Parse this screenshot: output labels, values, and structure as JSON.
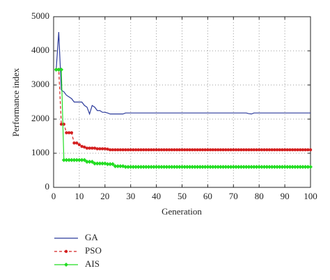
{
  "chart_data": {
    "type": "line",
    "x_label": "Generation",
    "y_label": "Performance index",
    "xlim": [
      0,
      100
    ],
    "ylim": [
      0,
      5000
    ],
    "xticks": [
      0,
      10,
      20,
      30,
      40,
      50,
      60,
      70,
      80,
      90,
      100
    ],
    "yticks": [
      0,
      1000,
      2000,
      3000,
      4000,
      5000
    ],
    "grid": true,
    "legend_position": "below",
    "x": [
      1,
      2,
      3,
      4,
      5,
      6,
      7,
      8,
      9,
      10,
      11,
      12,
      13,
      14,
      15,
      16,
      17,
      18,
      19,
      20,
      21,
      22,
      23,
      24,
      25,
      26,
      27,
      28,
      29,
      30,
      31,
      32,
      33,
      34,
      35,
      36,
      37,
      38,
      39,
      40,
      41,
      42,
      43,
      44,
      45,
      46,
      47,
      48,
      49,
      50,
      51,
      52,
      53,
      54,
      55,
      56,
      57,
      58,
      59,
      60,
      61,
      62,
      63,
      64,
      65,
      66,
      67,
      68,
      69,
      70,
      71,
      72,
      73,
      74,
      75,
      76,
      77,
      78,
      79,
      80,
      81,
      82,
      83,
      84,
      85,
      86,
      87,
      88,
      89,
      90,
      91,
      92,
      93,
      94,
      95,
      96,
      97,
      98,
      99,
      100
    ],
    "series": [
      {
        "name": "GA",
        "color": "#2b3a9b",
        "line_style": "solid",
        "marker": "none",
        "values": [
          3450,
          4550,
          2850,
          2800,
          2700,
          2650,
          2600,
          2500,
          2500,
          2500,
          2500,
          2400,
          2350,
          2150,
          2400,
          2350,
          2250,
          2250,
          2200,
          2200,
          2180,
          2150,
          2150,
          2150,
          2150,
          2150,
          2150,
          2180,
          2180,
          2180,
          2180,
          2180,
          2180,
          2180,
          2180,
          2180,
          2180,
          2180,
          2180,
          2180,
          2180,
          2180,
          2180,
          2180,
          2180,
          2180,
          2180,
          2180,
          2180,
          2180,
          2180,
          2180,
          2180,
          2180,
          2180,
          2180,
          2180,
          2180,
          2180,
          2180,
          2180,
          2180,
          2180,
          2180,
          2180,
          2180,
          2180,
          2180,
          2180,
          2180,
          2180,
          2180,
          2180,
          2180,
          2180,
          2160,
          2150,
          2180,
          2180,
          2180,
          2180,
          2180,
          2180,
          2180,
          2180,
          2180,
          2180,
          2180,
          2180,
          2180,
          2180,
          2180,
          2180,
          2180,
          2180,
          2180,
          2180,
          2180,
          2180,
          2180
        ]
      },
      {
        "name": "PSO",
        "color": "#d42020",
        "line_style": "dashed",
        "marker": "circle",
        "values": [
          3450,
          3450,
          1850,
          1850,
          1600,
          1600,
          1600,
          1300,
          1300,
          1250,
          1200,
          1180,
          1150,
          1150,
          1150,
          1150,
          1130,
          1130,
          1130,
          1130,
          1120,
          1100,
          1100,
          1100,
          1100,
          1100,
          1100,
          1100,
          1100,
          1100,
          1100,
          1100,
          1100,
          1100,
          1100,
          1100,
          1100,
          1100,
          1100,
          1100,
          1100,
          1100,
          1100,
          1100,
          1100,
          1100,
          1100,
          1100,
          1100,
          1100,
          1100,
          1100,
          1100,
          1100,
          1100,
          1100,
          1100,
          1100,
          1100,
          1100,
          1100,
          1100,
          1100,
          1100,
          1100,
          1100,
          1100,
          1100,
          1100,
          1100,
          1100,
          1100,
          1100,
          1100,
          1100,
          1100,
          1100,
          1100,
          1100,
          1100,
          1100,
          1100,
          1100,
          1100,
          1100,
          1100,
          1100,
          1100,
          1100,
          1100,
          1100,
          1100,
          1100,
          1100,
          1100,
          1100,
          1100,
          1100,
          1100,
          1100
        ]
      },
      {
        "name": "AIS",
        "color": "#22dd22",
        "line_style": "solid",
        "marker": "diamond",
        "values": [
          3450,
          3450,
          3450,
          800,
          800,
          800,
          800,
          800,
          800,
          800,
          800,
          800,
          750,
          750,
          750,
          700,
          700,
          700,
          700,
          700,
          680,
          680,
          680,
          620,
          620,
          620,
          620,
          600,
          600,
          600,
          600,
          600,
          600,
          600,
          600,
          600,
          600,
          600,
          600,
          600,
          600,
          600,
          600,
          600,
          600,
          600,
          600,
          600,
          600,
          600,
          600,
          600,
          600,
          600,
          600,
          600,
          600,
          600,
          600,
          600,
          600,
          600,
          600,
          600,
          600,
          600,
          600,
          600,
          600,
          600,
          600,
          600,
          600,
          600,
          600,
          600,
          600,
          600,
          600,
          600,
          600,
          600,
          600,
          600,
          600,
          600,
          600,
          600,
          600,
          600,
          600,
          600,
          600,
          600,
          600,
          600,
          600,
          600,
          600,
          600
        ]
      }
    ]
  }
}
